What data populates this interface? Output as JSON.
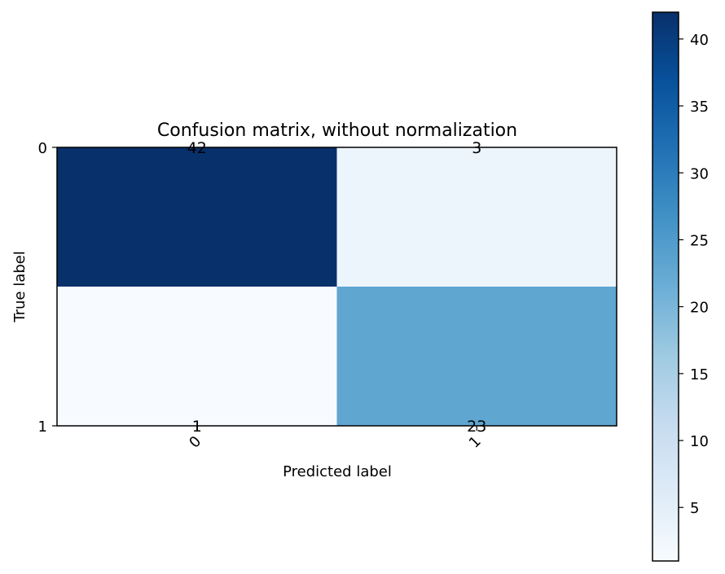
{
  "chart_data": {
    "type": "heatmap",
    "title": "Confusion matrix, without normalization",
    "xlabel": "Predicted label",
    "ylabel": "True label",
    "x_categories": [
      "0",
      "1"
    ],
    "y_categories": [
      "0",
      "1"
    ],
    "matrix": [
      [
        42,
        3
      ],
      [
        1,
        23
      ]
    ],
    "cell_labels": [
      [
        "42",
        "3"
      ],
      [
        "1",
        "23"
      ]
    ],
    "colormap": "Blues",
    "colorbar": {
      "range": [
        1,
        42
      ],
      "ticks": [
        5,
        10,
        15,
        20,
        25,
        30,
        35,
        40
      ],
      "tick_labels": [
        "5",
        "10",
        "15",
        "20",
        "25",
        "30",
        "35",
        "40"
      ]
    },
    "grid": false
  }
}
